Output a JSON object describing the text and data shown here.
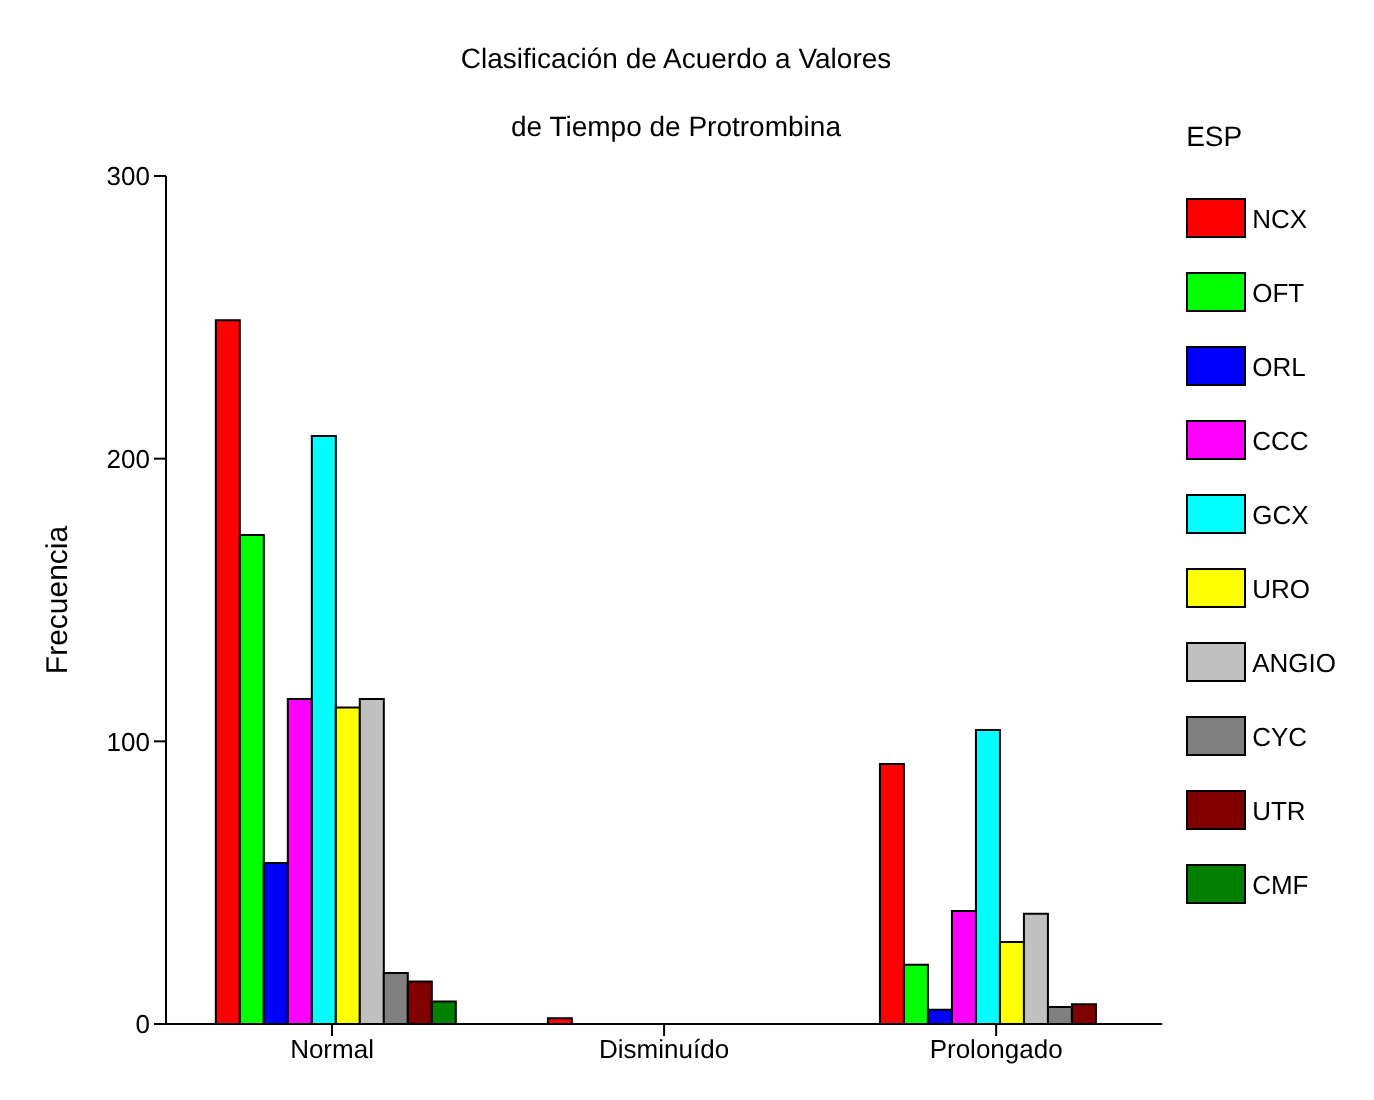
{
  "chart_data": {
    "type": "bar",
    "title": "Clasificación de Acuerdo a Valores\nde Tiempo de Protrombina",
    "ylabel": "Frecuencia",
    "legend_title": "ESP",
    "categories": [
      "Normal",
      "Disminuído",
      "Prolongado"
    ],
    "series": [
      {
        "name": "NCX",
        "color": "#ff0000",
        "values": [
          249,
          2,
          92
        ]
      },
      {
        "name": "OFT",
        "color": "#00ff00",
        "values": [
          173,
          0,
          21
        ]
      },
      {
        "name": "ORL",
        "color": "#0000ff",
        "values": [
          57,
          0,
          5
        ]
      },
      {
        "name": "CCC",
        "color": "#ff00ff",
        "values": [
          115,
          0,
          40
        ]
      },
      {
        "name": "GCX",
        "color": "#00ffff",
        "values": [
          208,
          0,
          104
        ]
      },
      {
        "name": "URO",
        "color": "#ffff00",
        "values": [
          112,
          0,
          29
        ]
      },
      {
        "name": "ANGIO",
        "color": "#c0c0c0",
        "values": [
          115,
          0,
          39
        ]
      },
      {
        "name": "CYC",
        "color": "#808080",
        "values": [
          18,
          0,
          6
        ]
      },
      {
        "name": "UTR",
        "color": "#800000",
        "values": [
          15,
          0,
          7
        ]
      },
      {
        "name": "CMF",
        "color": "#008000",
        "values": [
          8,
          0,
          0
        ]
      }
    ],
    "ylim": [
      0,
      300
    ],
    "yticks": [
      0,
      100,
      200,
      300
    ],
    "grid": false,
    "legend": "right"
  }
}
